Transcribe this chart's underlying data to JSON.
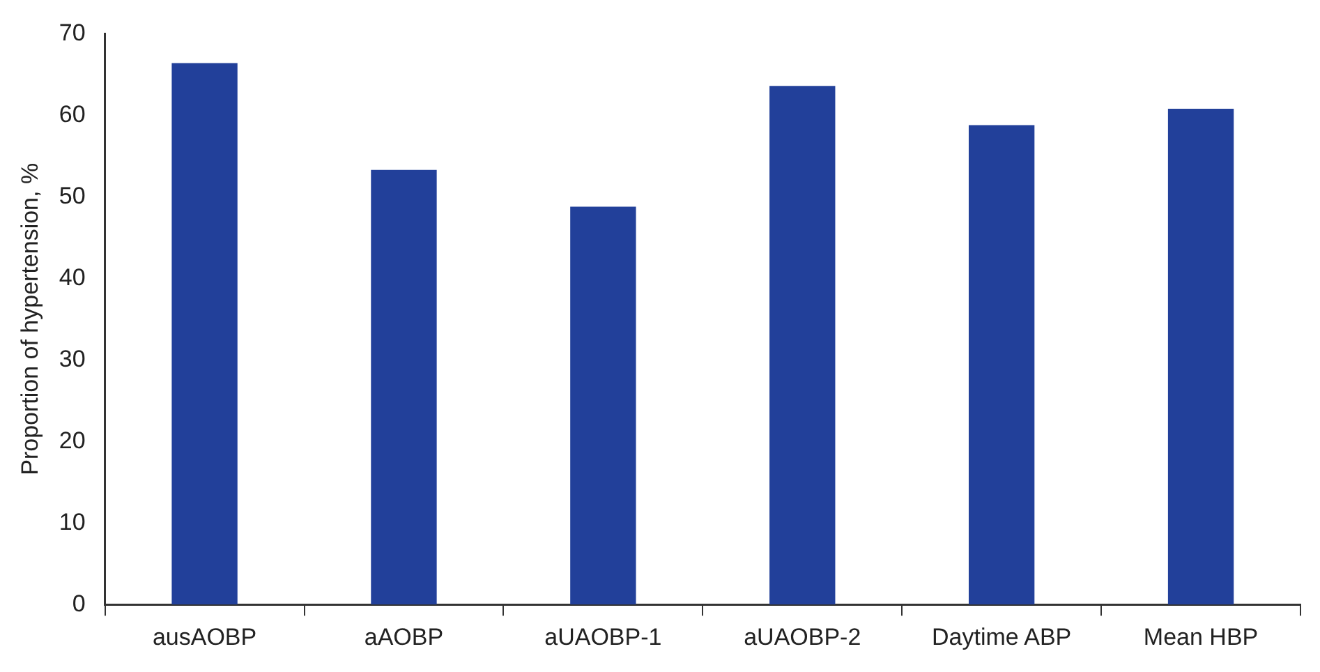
{
  "chart_data": {
    "type": "bar",
    "ylabel": "Proportion of hypertension, %",
    "categories": [
      "ausAOBP",
      "aAOBP",
      "aUAOBP-1",
      "aUAOBP-2",
      "Daytime ABP",
      "Mean HBP"
    ],
    "values": [
      66.4,
      53.3,
      48.8,
      63.6,
      58.8,
      60.8
    ],
    "color": "#22409a",
    "ylim": [
      0,
      70
    ],
    "yticks": [
      0,
      10,
      20,
      30,
      40,
      50,
      60,
      70
    ],
    "grid": false,
    "legend": false
  }
}
